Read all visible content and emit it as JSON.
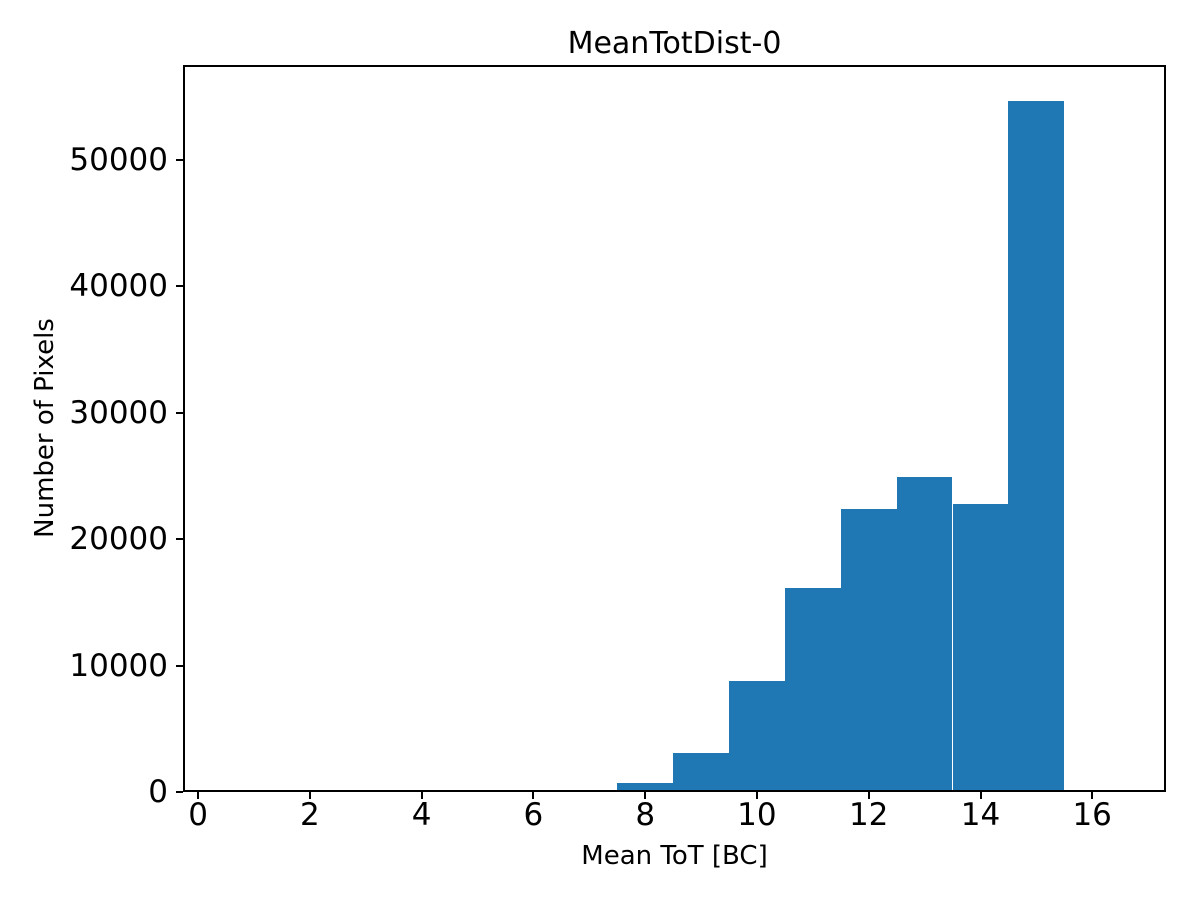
{
  "chart_data": {
    "type": "bar",
    "subtype": "histogram",
    "title": "MeanTotDist-0",
    "xlabel": "Mean ToT [BC]",
    "ylabel": "Number of Pixels",
    "bar_color": "#1f77b4",
    "axis_color": "#000000",
    "background_color": "#ffffff",
    "grid": false,
    "legend": "none",
    "xlim": [
      -0.27,
      17.32
    ],
    "ylim": [
      0,
      57500
    ],
    "xticks": [
      0,
      2,
      4,
      6,
      8,
      10,
      12,
      14,
      16
    ],
    "yticks": [
      0,
      10000,
      20000,
      30000,
      40000,
      50000
    ],
    "bins": {
      "edges": [
        6.5,
        7.5,
        8.5,
        9.5,
        10.5,
        11.5,
        12.5,
        13.5,
        14.5,
        15.5
      ],
      "counts": [
        190,
        710,
        3100,
        8800,
        16100,
        22400,
        24900,
        22800,
        54650
      ]
    }
  }
}
